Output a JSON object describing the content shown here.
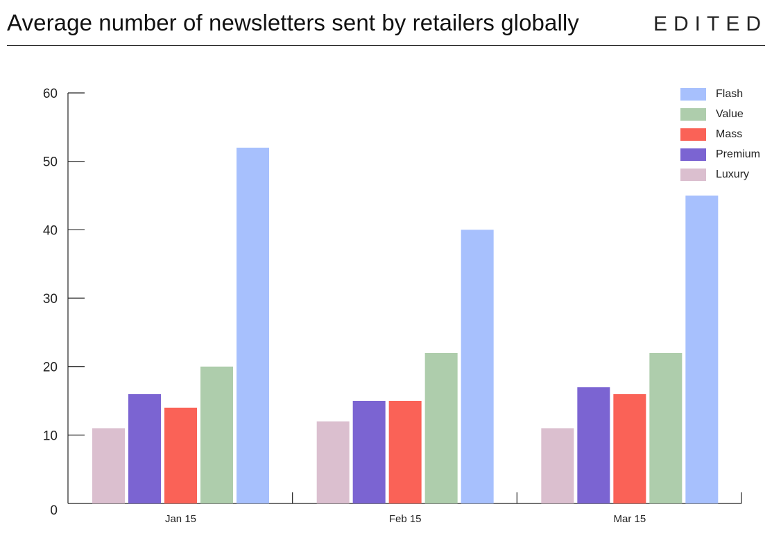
{
  "header": {
    "title": "Average number of newsletters sent by retailers globally",
    "brand": "EDITED"
  },
  "colors": {
    "Flash": "#a7c0fd",
    "Value": "#aecdac",
    "Mass": "#fa6257",
    "Premium": "#7b64d2",
    "Luxury": "#dbbfcf"
  },
  "chart_data": {
    "type": "bar",
    "categories": [
      "Jan 15",
      "Feb 15",
      "Mar 15"
    ],
    "series": [
      {
        "name": "Luxury",
        "values": [
          11,
          12,
          11
        ]
      },
      {
        "name": "Premium",
        "values": [
          16,
          15,
          17
        ]
      },
      {
        "name": "Mass",
        "values": [
          14,
          15,
          16
        ]
      },
      {
        "name": "Value",
        "values": [
          20,
          22,
          22
        ]
      },
      {
        "name": "Flash",
        "values": [
          52,
          40,
          45
        ]
      }
    ],
    "legend": [
      "Flash",
      "Value",
      "Mass",
      "Premium",
      "Luxury"
    ],
    "legend_position": "top-right",
    "ylim": [
      0,
      60
    ],
    "yticks": [
      0,
      10,
      20,
      30,
      40,
      50,
      60
    ],
    "grid": false,
    "xlabel": "",
    "ylabel": ""
  }
}
